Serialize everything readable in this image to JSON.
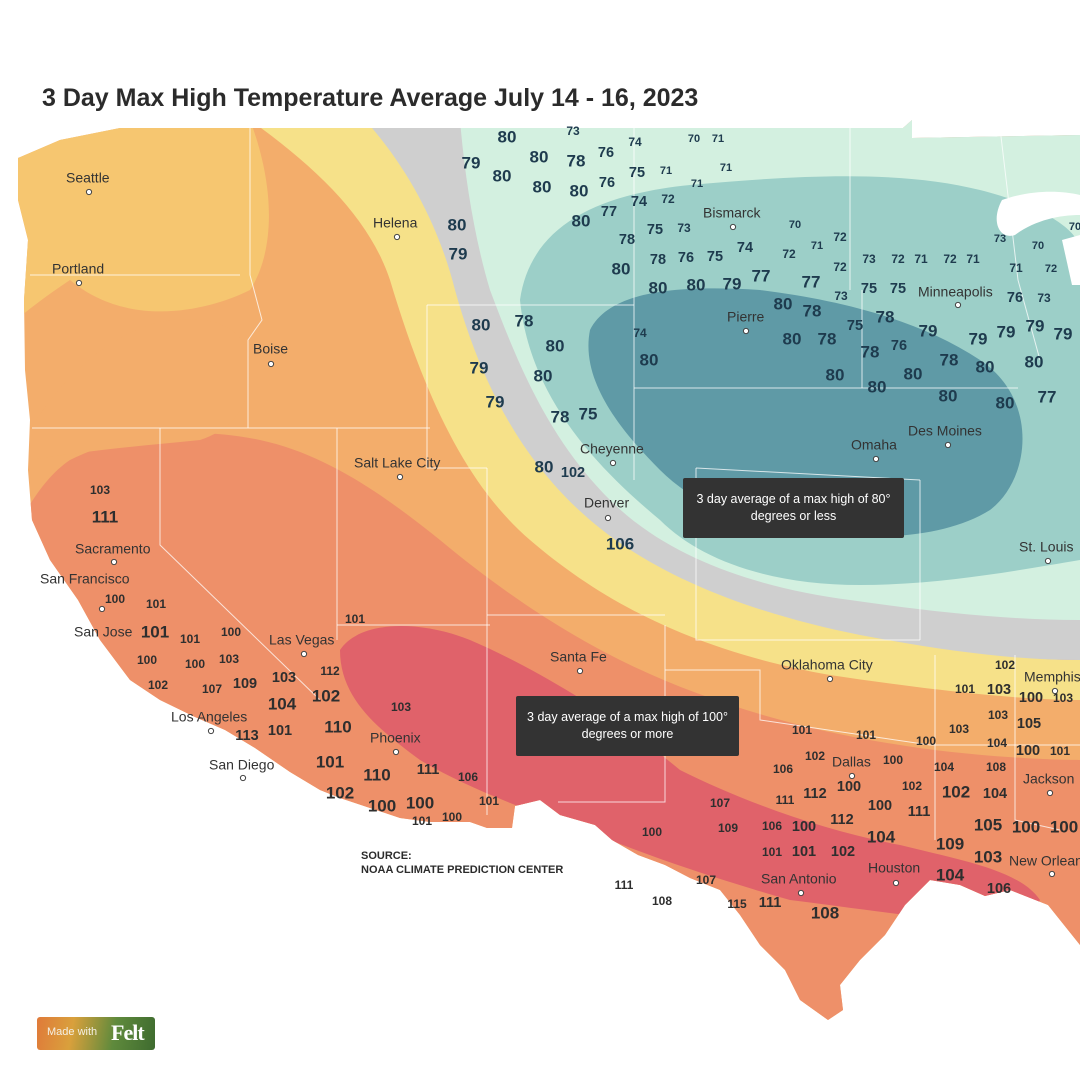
{
  "title": "3 Day Max High Temperature Average July 14 - 16, 2023",
  "source": {
    "line1": "SOURCE:",
    "line2": "NOAA CLIMATE PREDICTION CENTER"
  },
  "callouts": {
    "cool": "3 day average of a max high of 80° degrees or less",
    "hot": "3 day average of a max high of 100° degrees or more"
  },
  "branding": {
    "made_with": "Made with",
    "brand": "Felt"
  },
  "colors": {
    "zone_hot": "#e0626a",
    "zone_very_warm": "#ee9069",
    "zone_warm": "#f3ad6b",
    "zone_mild": "#f6c670",
    "zone_yellow": "#f6e189",
    "zone_gray": "#cfcfcf",
    "zone_mint": "#d3f0e0",
    "zone_teal": "#9ccfc8",
    "zone_deep_teal": "#5f9aa6",
    "label_dark": "#1e3b4e",
    "label_light": "#2e2e2e",
    "callout_bg": "#333333"
  },
  "cities": [
    {
      "name": "Seattle"
    },
    {
      "name": "Portland"
    },
    {
      "name": "Boise"
    },
    {
      "name": "Helena"
    },
    {
      "name": "Bismarck"
    },
    {
      "name": "Minneapolis"
    },
    {
      "name": "Pierre"
    },
    {
      "name": "Cheyenne"
    },
    {
      "name": "Salt Lake City"
    },
    {
      "name": "Denver"
    },
    {
      "name": "Omaha"
    },
    {
      "name": "Des Moines"
    },
    {
      "name": "St. Louis"
    },
    {
      "name": "Sacramento"
    },
    {
      "name": "San Francisco"
    },
    {
      "name": "San Jose"
    },
    {
      "name": "Las Vegas"
    },
    {
      "name": "Santa Fe"
    },
    {
      "name": "Oklahoma City"
    },
    {
      "name": "Memphis"
    },
    {
      "name": "Los Angeles"
    },
    {
      "name": "Phoenix"
    },
    {
      "name": "Dallas"
    },
    {
      "name": "San Diego"
    },
    {
      "name": "Jackson"
    },
    {
      "name": "Houston"
    },
    {
      "name": "San Antonio"
    },
    {
      "name": "New Orleans"
    }
  ],
  "temperatures": [
    "80",
    "73",
    "74",
    "70",
    "71",
    "79",
    "80",
    "80",
    "78",
    "76",
    "75",
    "71",
    "71",
    "80",
    "80",
    "80",
    "76",
    "71",
    "74",
    "72",
    "80",
    "77",
    "79",
    "75",
    "73",
    "80",
    "78",
    "70",
    "72",
    "71",
    "72",
    "74",
    "80",
    "78",
    "76",
    "75",
    "72",
    "73",
    "72",
    "71",
    "72",
    "71",
    "73",
    "70",
    "71",
    "72",
    "70",
    "80",
    "80",
    "79",
    "77",
    "77",
    "73",
    "75",
    "75",
    "76",
    "73",
    "80",
    "78",
    "79",
    "78",
    "75",
    "78",
    "79",
    "79",
    "79",
    "79",
    "74",
    "80",
    "80",
    "78",
    "76",
    "78",
    "78",
    "80",
    "79",
    "80",
    "80",
    "80",
    "80",
    "80",
    "79",
    "80",
    "80",
    "80",
    "77",
    "78",
    "75",
    "80",
    "102",
    "106",
    "101",
    "103",
    "111",
    "100",
    "101",
    "101",
    "101",
    "100",
    "100",
    "100",
    "103",
    "102",
    "107",
    "109",
    "103",
    "104",
    "102",
    "113",
    "101",
    "112",
    "110",
    "103",
    "101",
    "110",
    "111",
    "106",
    "102",
    "100",
    "100",
    "101",
    "100",
    "101",
    "100",
    "101",
    "101",
    "100",
    "103",
    "102",
    "100",
    "104",
    "100",
    "101",
    "102",
    "101",
    "103",
    "100",
    "103",
    "103",
    "105",
    "106",
    "104",
    "108",
    "112",
    "100",
    "102",
    "111",
    "100",
    "102",
    "104",
    "107",
    "112",
    "111",
    "109",
    "106",
    "100",
    "105",
    "100",
    "100",
    "101",
    "101",
    "102",
    "104",
    "109",
    "103",
    "104",
    "106",
    "111",
    "108",
    "107",
    "115",
    "111",
    "108"
  ]
}
